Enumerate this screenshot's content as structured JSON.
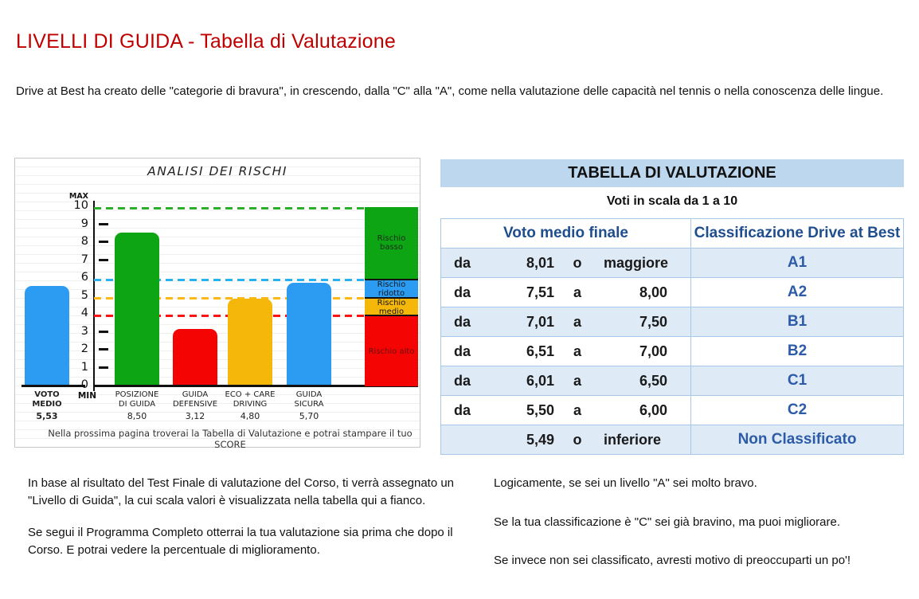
{
  "header": {
    "title": "LIVELLI DI GUIDA - Tabella di Valutazione",
    "title_color": "#c00000",
    "intro": "Drive at Best ha creato delle \"categorie di bravura\", in crescendo, dalla \"C\" alla \"A\", come nella valutazione delle capacità nel tennis o nella conoscenza delle lingue."
  },
  "chart_data": {
    "type": "bar",
    "title": "ANALISI DEI RISCHI",
    "ylim": [
      0,
      10
    ],
    "yticks": [
      0,
      1,
      2,
      3,
      4,
      5,
      6,
      7,
      8,
      9,
      10
    ],
    "plain_tick_dashes": [
      1,
      2,
      3,
      7,
      8,
      9
    ],
    "axis_max_label": "MAX",
    "axis_min_label": "MIN",
    "grid": "light horizontal stripes",
    "categories": [
      "VOTO\nMEDIO",
      "POSIZIONE\nDI GUIDA",
      "GUIDA\nDEFENSIVE",
      "ECO + CARE\nDRIVING",
      "GUIDA\nSICURA"
    ],
    "values": [
      5.53,
      8.5,
      3.12,
      4.8,
      5.7
    ],
    "value_labels": [
      "5,53",
      "8,50",
      "3,12",
      "4,80",
      "5,70"
    ],
    "bar_colors": [
      "#2b9cf2",
      "#0da513",
      "#f50404",
      "#f5b70a",
      "#2b9cf2"
    ],
    "threshold_lines": [
      {
        "value": 10,
        "color": "#2cb02c"
      },
      {
        "value": 6,
        "color": "#29b2f0"
      },
      {
        "value": 5,
        "color": "#ffb914"
      },
      {
        "value": 4,
        "color": "#ff1414"
      }
    ],
    "risk_bands": [
      {
        "label": "Rischio basso",
        "from": 6,
        "to": 10,
        "color": "#0da513",
        "text_color": "#1c2b1c"
      },
      {
        "label": "Rischio ridotto",
        "from": 5,
        "to": 6,
        "color": "#2b9cf2",
        "text_color": "#101820"
      },
      {
        "label": "Rischio medio",
        "from": 4,
        "to": 5,
        "color": "#f5b70a",
        "text_color": "#141414"
      },
      {
        "label": "Rischio alto",
        "from": 0,
        "to": 4,
        "color": "#f50404",
        "text_color": "#6b1010"
      }
    ],
    "footnote": "Nella prossima pagina troverai la Tabella di Valutazione e potrai stampare il tuo SCORE"
  },
  "table": {
    "title": "TABELLA DI VALUTAZIONE",
    "subtitle": "Voti in scala da 1 a 10",
    "columns": [
      "Voto medio finale",
      "Classificazione Drive at Best"
    ],
    "header_bg": "#bdd7ee",
    "row_alt_bg": "#deebf7",
    "border_color": "#a8c8e8",
    "header_text_color": "#1f4e8f",
    "value_text_color": "#2e5ba8",
    "rows": [
      {
        "prefix": "da",
        "from": "8,01",
        "conn": "o",
        "to": "maggiore",
        "classification": "A1"
      },
      {
        "prefix": "da",
        "from": "7,51",
        "conn": "a",
        "to": "8,00",
        "classification": "A2"
      },
      {
        "prefix": "da",
        "from": "7,01",
        "conn": "a",
        "to": "7,50",
        "classification": "B1"
      },
      {
        "prefix": "da",
        "from": "6,51",
        "conn": "a",
        "to": "7,00",
        "classification": "B2"
      },
      {
        "prefix": "da",
        "from": "6,01",
        "conn": "a",
        "to": "6,50",
        "classification": "C1"
      },
      {
        "prefix": "da",
        "from": "5,50",
        "conn": "a",
        "to": "6,00",
        "classification": "C2"
      },
      {
        "prefix": "",
        "from": "5,49",
        "conn": "o",
        "to": "inferiore",
        "classification": "Non Classificato"
      }
    ]
  },
  "notes_left": [
    "In base al risultato del Test Finale di valutazione del Corso, ti verrà assegnato un \"Livello di Guida\", la cui scala valori è visualizzata nella tabella qui a fianco.",
    "Se segui il Programma Completo otterrai la tua valutazione sia prima che dopo il Corso. E potrai vedere la percentuale di miglioramento."
  ],
  "notes_right": [
    "Logicamente, se sei un livello \"A\" sei molto bravo.",
    "Se la tua classificazione è \"C\" sei già bravino, ma puoi migliorare.",
    "Se invece non sei classificato, avresti motivo di preoccuparti un po'!"
  ]
}
